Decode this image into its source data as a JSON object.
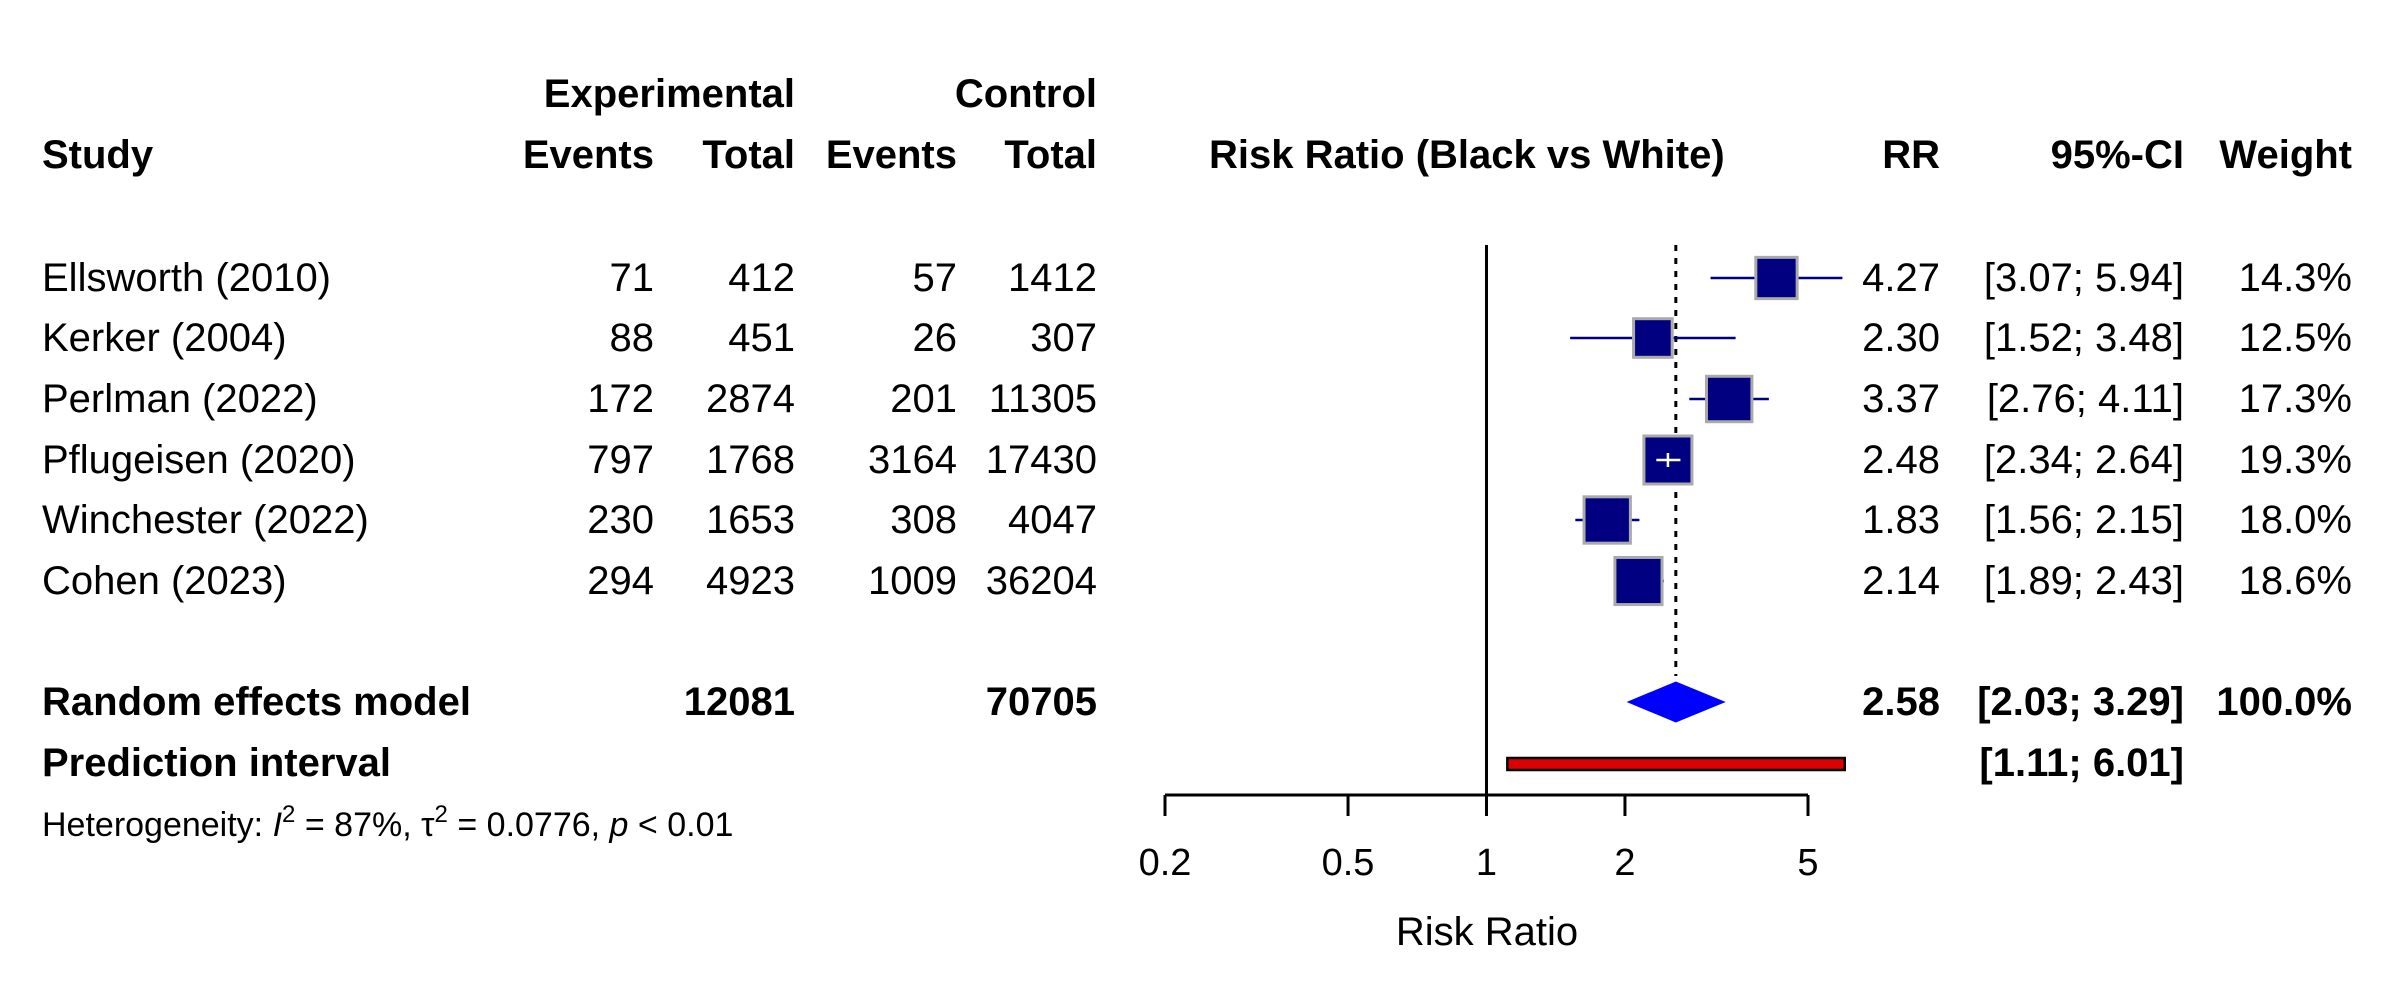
{
  "colors": {
    "box_fill": "#000080",
    "box_border": "#aaaaaa",
    "ci_line": "#000080",
    "diamond": "#0000ff",
    "prediction_fill": "#dd0000",
    "prediction_border": "#000000"
  },
  "headers": {
    "experimental": "Experimental",
    "control": "Control",
    "study": "Study",
    "events_e": "Events",
    "total_e": "Total",
    "events_c": "Events",
    "total_c": "Total",
    "plot_title": "Risk Ratio (Black vs White)",
    "rr": "RR",
    "ci": "95%-CI",
    "weight": "Weight"
  },
  "studies": [
    {
      "name": "Ellsworth (2010)",
      "events_e": "71",
      "total_e": "412",
      "events_c": "57",
      "total_c": "1412",
      "rr_text": "4.27",
      "ci_text": "[3.07; 5.94]",
      "weight_text": "14.3%"
    },
    {
      "name": "Kerker (2004)",
      "events_e": "88",
      "total_e": "451",
      "events_c": "26",
      "total_c": "307",
      "rr_text": "2.30",
      "ci_text": "[1.52; 3.48]",
      "weight_text": "12.5%"
    },
    {
      "name": "Perlman (2022)",
      "events_e": "172",
      "total_e": "2874",
      "events_c": "201",
      "total_c": "11305",
      "rr_text": "3.37",
      "ci_text": "[2.76; 4.11]",
      "weight_text": "17.3%"
    },
    {
      "name": "Pflugeisen (2020)",
      "events_e": "797",
      "total_e": "1768",
      "events_c": "3164",
      "total_c": "17430",
      "rr_text": "2.48",
      "ci_text": "[2.34; 2.64]",
      "weight_text": "19.3%"
    },
    {
      "name": "Winchester (2022)",
      "events_e": "230",
      "total_e": "1653",
      "events_c": "308",
      "total_c": "4047",
      "rr_text": "1.83",
      "ci_text": "[1.56; 2.15]",
      "weight_text": "18.0%"
    },
    {
      "name": "Cohen (2023)",
      "events_e": "294",
      "total_e": "4923",
      "events_c": "1009",
      "total_c": "36204",
      "rr_text": "2.14",
      "ci_text": "[1.89; 2.43]",
      "weight_text": "18.6%"
    }
  ],
  "random_effects": {
    "label": "Random effects model",
    "total_e": "12081",
    "total_c": "70705",
    "rr_text": "2.58",
    "ci_text": "[2.03; 3.29]",
    "weight_text": "100.0%"
  },
  "prediction": {
    "label": "Prediction interval",
    "ci_text": "[1.11; 6.01]"
  },
  "heterogeneity": {
    "prefix": "Heterogeneity: ",
    "i2_symbol": "I",
    "i2_value": " = 87%, ",
    "tau_symbol": "τ",
    "tau_value": " = 0.0776, ",
    "p_symbol": "p",
    "p_value": " < 0.01",
    "superscript": "2"
  },
  "chart_data": {
    "type": "forest",
    "scale": "log",
    "xlim": [
      0.2,
      5
    ],
    "ticks": [
      0.2,
      0.5,
      1,
      2,
      5
    ],
    "tick_labels": [
      "0.2",
      "0.5",
      "1",
      "2",
      "5"
    ],
    "xlabel": "Risk Ratio",
    "title": "Risk Ratio (Black vs White)",
    "reference_line": 1,
    "pooled_line": 2.58,
    "studies": [
      {
        "name": "Ellsworth (2010)",
        "rr": 4.27,
        "lower": 3.07,
        "upper": 5.94,
        "weight": 14.3
      },
      {
        "name": "Kerker (2004)",
        "rr": 2.3,
        "lower": 1.52,
        "upper": 3.48,
        "weight": 12.5
      },
      {
        "name": "Perlman (2022)",
        "rr": 3.37,
        "lower": 2.76,
        "upper": 4.11,
        "weight": 17.3
      },
      {
        "name": "Pflugeisen (2020)",
        "rr": 2.48,
        "lower": 2.34,
        "upper": 2.64,
        "weight": 19.3
      },
      {
        "name": "Winchester (2022)",
        "rr": 1.83,
        "lower": 1.56,
        "upper": 2.15,
        "weight": 18.0
      },
      {
        "name": "Cohen (2023)",
        "rr": 2.14,
        "lower": 1.89,
        "upper": 2.43,
        "weight": 18.6
      }
    ],
    "pooled": {
      "rr": 2.58,
      "lower": 2.03,
      "upper": 3.29,
      "weight": 100.0
    },
    "prediction_interval": {
      "lower": 1.11,
      "upper": 6.01
    }
  }
}
